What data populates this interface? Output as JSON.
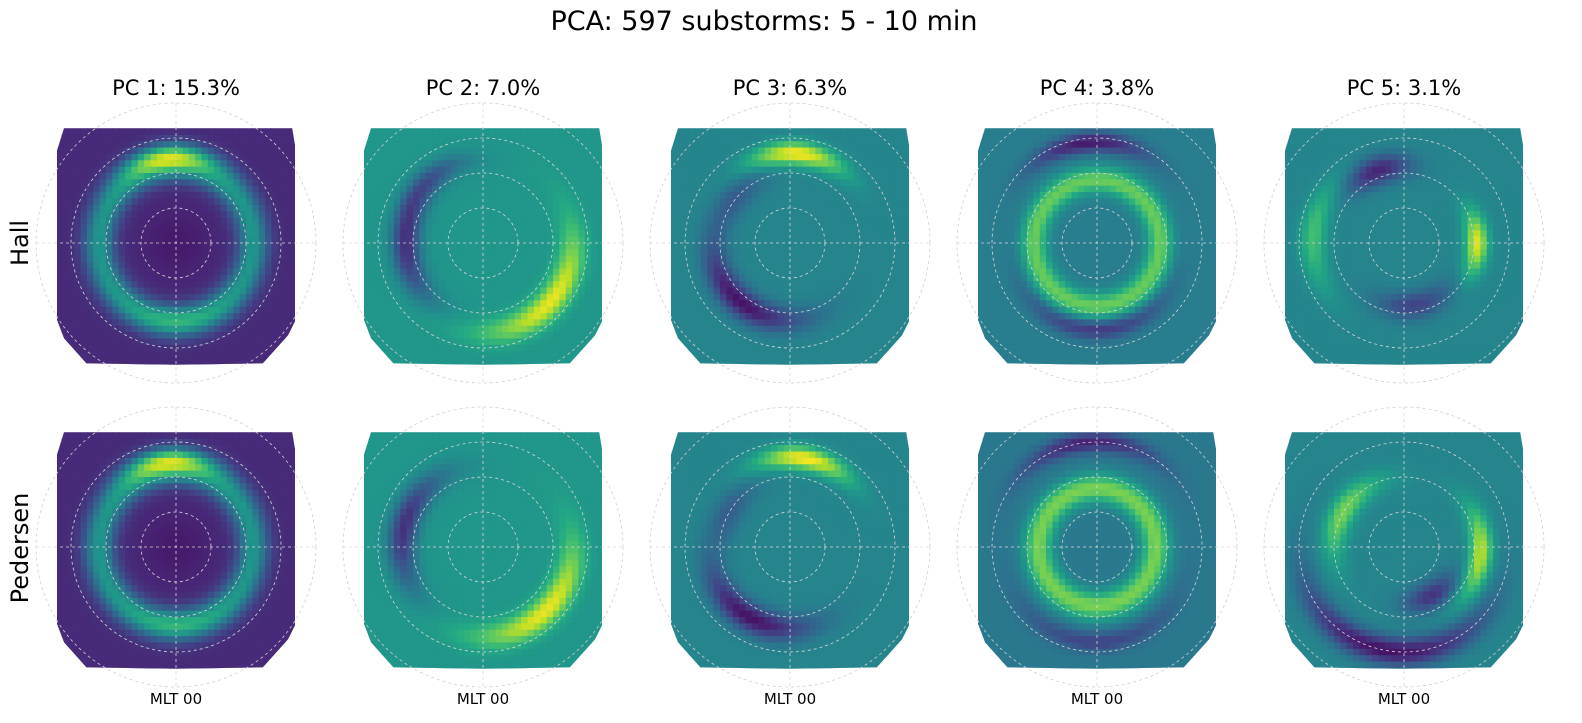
{
  "chart_data": {
    "type": "heatmap",
    "title": "PCA: 597 substorms: 5 - 10 min",
    "projection": "polar (magnetic latitude / MLT)",
    "colormap": "viridis",
    "rows": [
      "Hall",
      "Pedersen"
    ],
    "columns": [
      "PC 1: 15.3%",
      "PC 2: 7.0%",
      "PC 3: 6.3%",
      "PC 4: 3.8%",
      "PC 5: 3.1%"
    ],
    "explained_variance_pct": [
      15.3,
      7.0,
      6.3,
      3.8,
      3.1
    ],
    "bottom_label": "MLT 00",
    "grid": true,
    "colors": {
      "viridis_low": "#440154",
      "viridis_mid": "#21918c",
      "viridis_high": "#fde725"
    },
    "panels": [
      {
        "row": "Hall",
        "component": 1,
        "pattern": [
          {
            "shape": "base",
            "value": 0.12
          },
          {
            "shape": "ring",
            "radius": 0.55,
            "width": 0.11,
            "amp": 0.4
          },
          {
            "shape": "blob",
            "angle": 95,
            "radius": 0.62,
            "ang_spread": 30,
            "rad_spread": 0.09,
            "amp": 0.55
          },
          {
            "shape": "blob",
            "angle": 270,
            "radius": 0.58,
            "ang_spread": 35,
            "rad_spread": 0.1,
            "amp": 0.15
          },
          {
            "shape": "ring",
            "radius": 0.0,
            "width": 0.25,
            "amp": -0.05
          }
        ]
      },
      {
        "row": "Hall",
        "component": 2,
        "pattern": [
          {
            "shape": "base",
            "value": 0.52
          },
          {
            "shape": "blob",
            "angle": -40,
            "radius": 0.64,
            "ang_spread": 50,
            "rad_spread": 0.1,
            "amp": 0.45
          },
          {
            "shape": "blob",
            "angle": 180,
            "radius": 0.55,
            "ang_spread": 45,
            "rad_spread": 0.1,
            "amp": -0.38
          },
          {
            "shape": "blob",
            "angle": 130,
            "radius": 0.6,
            "ang_spread": 30,
            "rad_spread": 0.08,
            "amp": -0.2
          }
        ]
      },
      {
        "row": "Hall",
        "component": 3,
        "pattern": [
          {
            "shape": "base",
            "value": 0.45
          },
          {
            "shape": "blob",
            "angle": 85,
            "radius": 0.64,
            "ang_spread": 30,
            "rad_spread": 0.08,
            "amp": 0.55
          },
          {
            "shape": "blob",
            "angle": 230,
            "radius": 0.55,
            "ang_spread": 50,
            "rad_spread": 0.1,
            "amp": -0.4
          },
          {
            "shape": "blob",
            "angle": 140,
            "radius": 0.5,
            "ang_spread": 30,
            "rad_spread": 0.1,
            "amp": -0.15
          }
        ]
      },
      {
        "row": "Hall",
        "component": 4,
        "pattern": [
          {
            "shape": "base",
            "value": 0.42
          },
          {
            "shape": "ring",
            "radius": 0.45,
            "width": 0.09,
            "amp": 0.35
          },
          {
            "shape": "blob",
            "angle": 95,
            "radius": 0.72,
            "ang_spread": 35,
            "rad_spread": 0.07,
            "amp": -0.35
          },
          {
            "shape": "blob",
            "angle": 270,
            "radius": 0.62,
            "ang_spread": 50,
            "rad_spread": 0.07,
            "amp": -0.25
          }
        ]
      },
      {
        "row": "Hall",
        "component": 5,
        "pattern": [
          {
            "shape": "base",
            "value": 0.45
          },
          {
            "shape": "blob",
            "angle": 0,
            "radius": 0.52,
            "ang_spread": 25,
            "rad_spread": 0.08,
            "amp": 0.5
          },
          {
            "shape": "blob",
            "angle": 175,
            "radius": 0.65,
            "ang_spread": 35,
            "rad_spread": 0.09,
            "amp": 0.25
          },
          {
            "shape": "blob",
            "angle": 110,
            "radius": 0.55,
            "ang_spread": 25,
            "rad_spread": 0.1,
            "amp": -0.35
          },
          {
            "shape": "blob",
            "angle": 280,
            "radius": 0.45,
            "ang_spread": 35,
            "rad_spread": 0.1,
            "amp": -0.25
          }
        ]
      },
      {
        "row": "Pedersen",
        "component": 1,
        "pattern": [
          {
            "shape": "base",
            "value": 0.12
          },
          {
            "shape": "ring",
            "radius": 0.55,
            "width": 0.11,
            "amp": 0.4
          },
          {
            "shape": "blob",
            "angle": 95,
            "radius": 0.62,
            "ang_spread": 30,
            "rad_spread": 0.09,
            "amp": 0.55
          },
          {
            "shape": "blob",
            "angle": 270,
            "radius": 0.58,
            "ang_spread": 35,
            "rad_spread": 0.1,
            "amp": 0.15
          },
          {
            "shape": "ring",
            "radius": 0.0,
            "width": 0.25,
            "amp": -0.05
          }
        ]
      },
      {
        "row": "Pedersen",
        "component": 2,
        "pattern": [
          {
            "shape": "base",
            "value": 0.52
          },
          {
            "shape": "blob",
            "angle": -45,
            "radius": 0.64,
            "ang_spread": 50,
            "rad_spread": 0.1,
            "amp": 0.45
          },
          {
            "shape": "blob",
            "angle": 165,
            "radius": 0.58,
            "ang_spread": 45,
            "rad_spread": 0.1,
            "amp": -0.38
          }
        ]
      },
      {
        "row": "Pedersen",
        "component": 3,
        "pattern": [
          {
            "shape": "base",
            "value": 0.45
          },
          {
            "shape": "blob",
            "angle": 80,
            "radius": 0.64,
            "ang_spread": 30,
            "rad_spread": 0.08,
            "amp": 0.55
          },
          {
            "shape": "blob",
            "angle": 240,
            "radius": 0.58,
            "ang_spread": 45,
            "rad_spread": 0.1,
            "amp": -0.4
          },
          {
            "shape": "blob",
            "angle": 150,
            "radius": 0.5,
            "ang_spread": 30,
            "rad_spread": 0.1,
            "amp": -0.15
          }
        ]
      },
      {
        "row": "Pedersen",
        "component": 4,
        "pattern": [
          {
            "shape": "base",
            "value": 0.4
          },
          {
            "shape": "ring",
            "radius": 0.42,
            "width": 0.1,
            "amp": 0.4
          },
          {
            "shape": "blob",
            "angle": 95,
            "radius": 0.75,
            "ang_spread": 40,
            "rad_spread": 0.07,
            "amp": -0.3
          },
          {
            "shape": "blob",
            "angle": 270,
            "radius": 0.68,
            "ang_spread": 50,
            "rad_spread": 0.07,
            "amp": -0.2
          }
        ]
      },
      {
        "row": "Pedersen",
        "component": 5,
        "pattern": [
          {
            "shape": "base",
            "value": 0.45
          },
          {
            "shape": "blob",
            "angle": -5,
            "radius": 0.55,
            "ang_spread": 35,
            "rad_spread": 0.08,
            "amp": 0.45
          },
          {
            "shape": "blob",
            "angle": 150,
            "radius": 0.5,
            "ang_spread": 40,
            "rad_spread": 0.09,
            "amp": 0.35
          },
          {
            "shape": "blob",
            "angle": 260,
            "radius": 0.75,
            "ang_spread": 60,
            "rad_spread": 0.1,
            "amp": -0.4
          },
          {
            "shape": "blob",
            "angle": 300,
            "radius": 0.4,
            "ang_spread": 30,
            "rad_spread": 0.1,
            "amp": -0.3
          }
        ]
      }
    ]
  }
}
